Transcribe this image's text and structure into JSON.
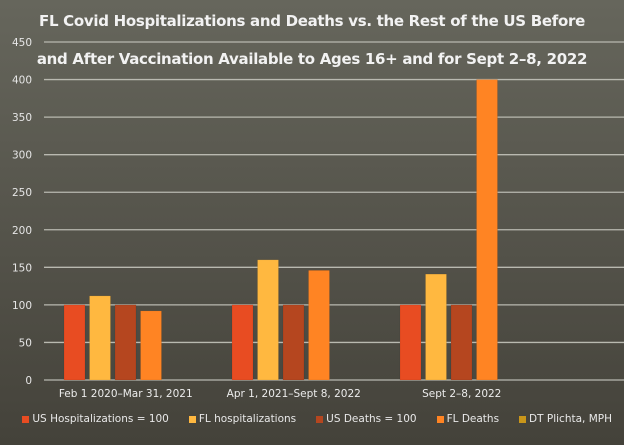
{
  "chart_data": {
    "type": "bar",
    "title": "FL Covid Hospitalizations and Deaths vs. the Rest of the US Before and After Vaccination Available to Ages 16+ and for Sept 2–8, 2022",
    "title_lines": [
      "FL Covid Hospitalizations and Deaths vs. the Rest of the US Before",
      "and After Vaccination Available to Ages 16+ and for Sept 2–8, 2022"
    ],
    "xlabel": "",
    "ylabel": "",
    "ylim": [
      0,
      450
    ],
    "yticks": [
      0,
      50,
      100,
      150,
      200,
      250,
      300,
      350,
      400,
      450
    ],
    "grid": true,
    "legend_position": "bottom",
    "categories": [
      "Feb 1 2020–Mar 31, 2021",
      "Apr 1, 2021–Sept 8, 2022",
      "Sept 2–8, 2022"
    ],
    "series": [
      {
        "name": "US Hospitalizations = 100",
        "color": "#e84c22",
        "values": [
          100,
          100,
          100
        ]
      },
      {
        "name": "FL hospitalizations",
        "color": "#ffb840",
        "values": [
          112,
          160,
          141
        ]
      },
      {
        "name": "US Deaths = 100",
        "color": "#b5461f",
        "values": [
          100,
          100,
          100
        ]
      },
      {
        "name": "FL Deaths",
        "color": "#ff8423",
        "values": [
          92,
          146,
          400
        ]
      },
      {
        "name": "DT Plichta, MPH",
        "color": "#c9961a",
        "values": [
          null,
          null,
          null
        ]
      }
    ]
  }
}
